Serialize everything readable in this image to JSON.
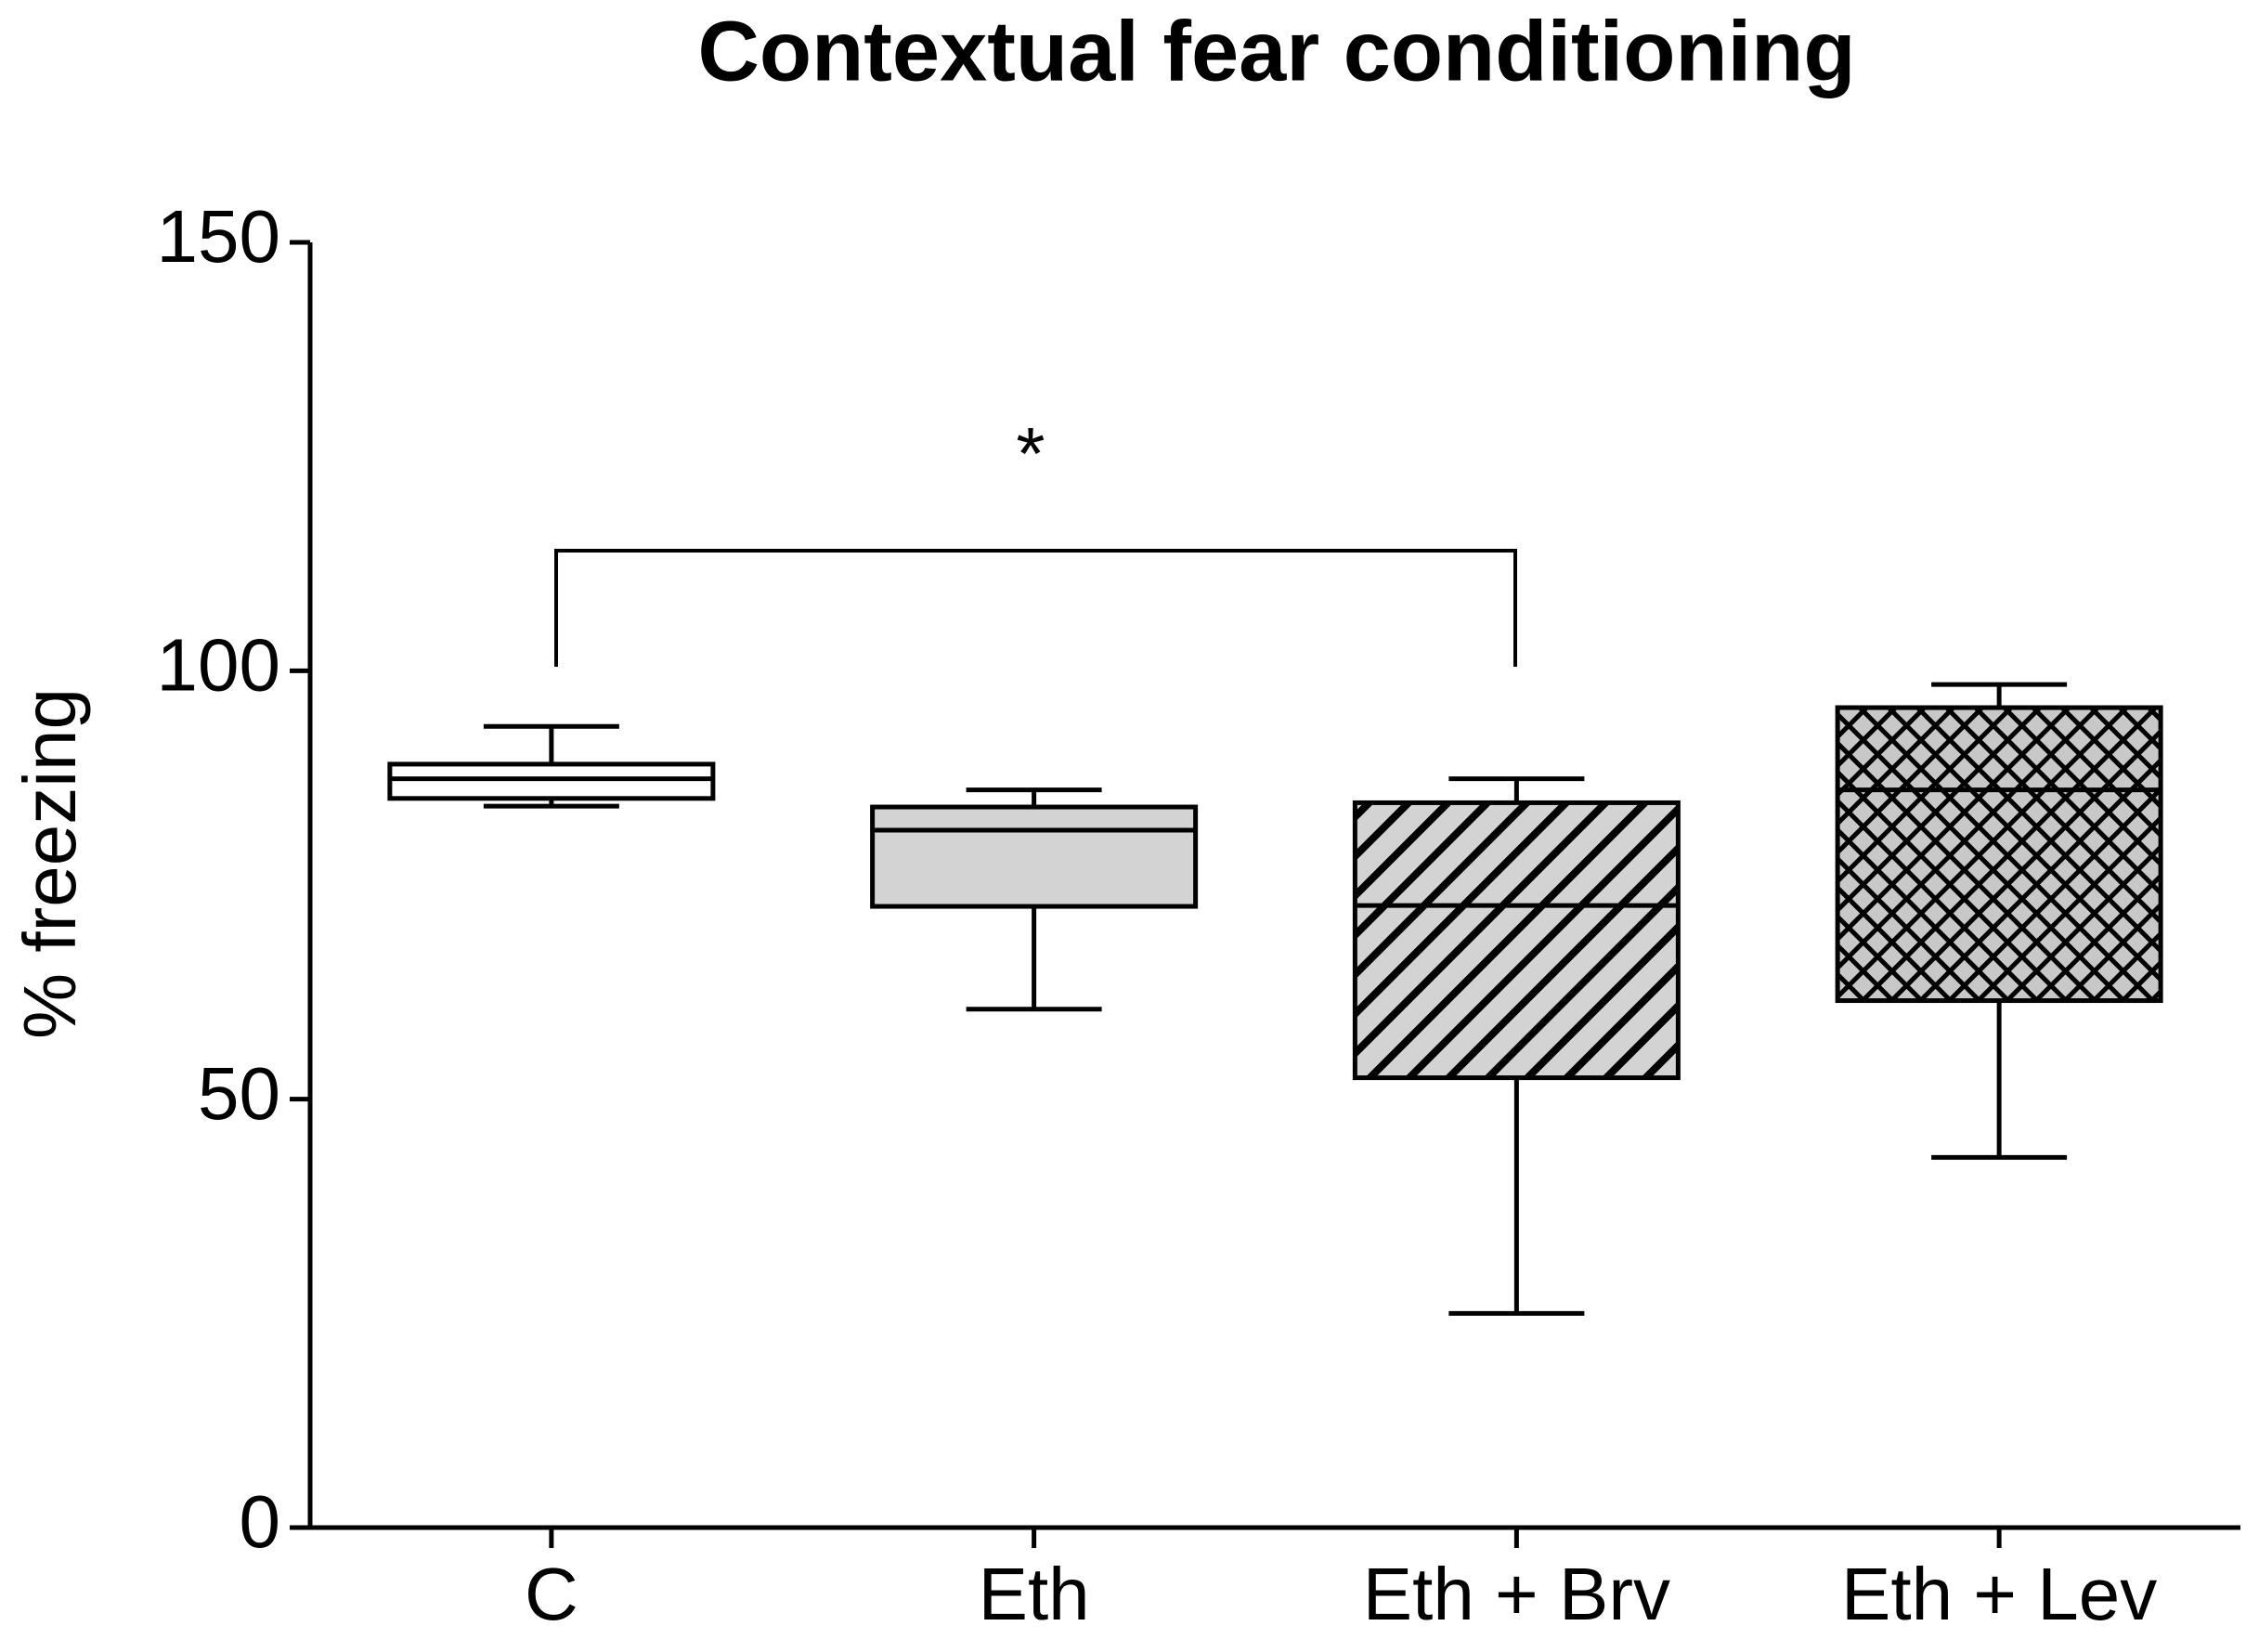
{
  "chart_data": {
    "type": "box",
    "title": "Contextual fear conditioning",
    "y_label": "% freezing",
    "categories": [
      "C",
      "Eth",
      "Eth + Brv",
      "Eth + Lev"
    ],
    "boxes": [
      {
        "min": 84.2,
        "q1": 85.1,
        "median": 87.4,
        "q3": 89.1,
        "max": 93.5
      },
      {
        "min": 60.5,
        "q1": 72.5,
        "median": 81.4,
        "q3": 84.1,
        "max": 86.1
      },
      {
        "min": 25,
        "q1": 52.5,
        "median": 72.6,
        "q3": 84.6,
        "max": 87.4
      },
      {
        "min": 43.2,
        "q1": 61.5,
        "median": 86.1,
        "q3": 95.7,
        "max": 98.4
      }
    ],
    "fills": [
      "#ffffff",
      "#d3d3d3",
      "#d3d3d3",
      "#c8c8c8"
    ],
    "patterns": [
      "none",
      "none",
      "diagonal",
      "crosshatch"
    ],
    "annotation": "*",
    "ylim": [
      0,
      150
    ],
    "yticks": [
      0,
      50,
      100,
      150
    ]
  }
}
